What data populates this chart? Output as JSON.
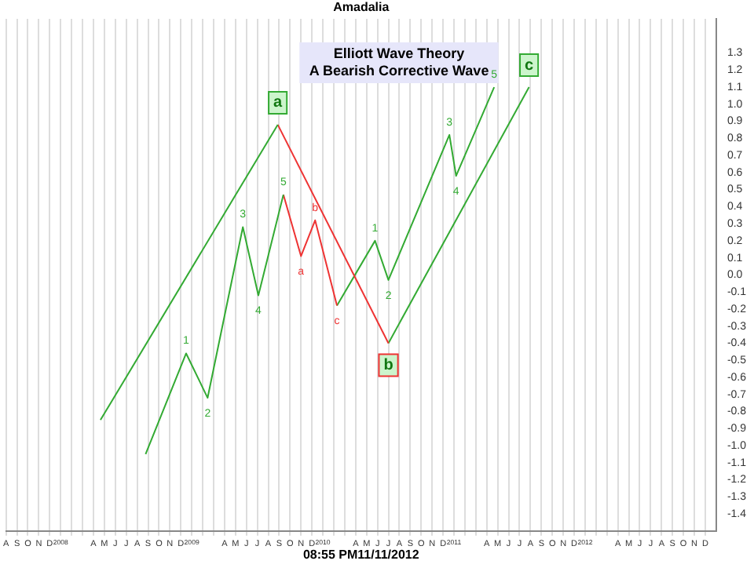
{
  "chart_data": {
    "type": "line",
    "title": "Elliott Wave Theory",
    "subtitle": "A Bearish Corrective Wave",
    "series": [
      {
        "color": "#33aa33",
        "x": [
          "2008-04-21",
          "2009-08-28"
        ],
        "values": [
          -0.85,
          0.88
        ]
      },
      {
        "color": "#ee3333",
        "x": [
          "2009-08-28",
          "2010-07-01"
        ],
        "values": [
          0.88,
          -0.4
        ]
      },
      {
        "color": "#33aa33",
        "x": [
          "2010-07-01",
          "2011-07-28"
        ],
        "values": [
          -0.4,
          1.1
        ]
      },
      {
        "color": "#33aa33",
        "x": [
          "2008-08-25",
          "2008-12-16",
          "2009-02-15",
          "2009-05-22",
          "2009-07-04",
          "2009-09-13"
        ],
        "values": [
          -1.05,
          -0.46,
          -0.72,
          0.28,
          -0.12,
          0.47
        ]
      },
      {
        "color": "#ee3333",
        "x": [
          "2009-09-13",
          "2009-11-01",
          "2009-12-10",
          "2010-02-10"
        ],
        "values": [
          0.47,
          0.11,
          0.32,
          -0.18
        ]
      },
      {
        "color": "#33aa33",
        "x": [
          "2010-02-10",
          "2010-05-25",
          "2010-07-01",
          "2010-12-19",
          "2011-01-07",
          "2011-04-22"
        ],
        "values": [
          -0.18,
          0.2,
          -0.03,
          0.82,
          0.58,
          1.1
        ]
      }
    ],
    "annotations": [
      "Amadalia",
      "08:55 PM11/11/2012",
      {
        "text": "a",
        "x": "2009-08-28",
        "y": 0.88
      },
      {
        "text": "b",
        "x": "2010-07-01",
        "y": -0.4
      },
      {
        "text": "c",
        "x": "2011-07-28",
        "y": 1.1
      },
      {
        "text": "1",
        "x": "2008-12-16",
        "y": -0.46
      },
      {
        "text": "2",
        "x": "2009-02-15",
        "y": -0.72
      },
      {
        "text": "3",
        "x": "2009-05-22",
        "y": 0.28
      },
      {
        "text": "4",
        "x": "2009-07-04",
        "y": -0.12
      },
      {
        "text": "5",
        "x": "2009-09-13",
        "y": 0.47
      },
      {
        "text": "a",
        "x": "2009-11-01",
        "y": 0.11
      },
      {
        "text": "b",
        "x": "2009-12-10",
        "y": 0.32
      },
      {
        "text": "c",
        "x": "2010-02-10",
        "y": -0.18
      },
      {
        "text": "1",
        "x": "2010-05-25",
        "y": 0.2
      },
      {
        "text": "2",
        "x": "2010-07-01",
        "y": -0.03
      },
      {
        "text": "3",
        "x": "2010-12-19",
        "y": 0.82
      },
      {
        "text": "4",
        "x": "2011-01-07",
        "y": 0.58
      },
      {
        "text": "5",
        "x": "2011-04-22",
        "y": 1.1
      }
    ],
    "xlim": [
      "2007-08-01",
      "2013-01-01"
    ],
    "xticks": [
      {
        "value": "2007-08-01",
        "label": "A"
      },
      {
        "value": "2007-09-01",
        "label": "S"
      },
      {
        "value": "2007-10-01",
        "label": "O"
      },
      {
        "value": "2007-11-01",
        "label": "N"
      },
      {
        "value": "2007-12-01",
        "label": "D"
      },
      {
        "value": "2008-01-01",
        "label": "2008"
      },
      {
        "value": "2008-02-01",
        "label": null
      },
      {
        "value": "2008-03-01",
        "label": null
      },
      {
        "value": "2008-04-01",
        "label": "A"
      },
      {
        "value": "2008-05-01",
        "label": "M"
      },
      {
        "value": "2008-06-01",
        "label": "J"
      },
      {
        "value": "2008-07-01",
        "label": "J"
      },
      {
        "value": "2008-08-01",
        "label": "A"
      },
      {
        "value": "2008-09-01",
        "label": "S"
      },
      {
        "value": "2008-10-01",
        "label": "O"
      },
      {
        "value": "2008-11-01",
        "label": "N"
      },
      {
        "value": "2008-12-01",
        "label": "D"
      },
      {
        "value": "2009-01-01",
        "label": "2009"
      },
      {
        "value": "2009-02-01",
        "label": null
      },
      {
        "value": "2009-03-01",
        "label": null
      },
      {
        "value": "2009-04-01",
        "label": "A"
      },
      {
        "value": "2009-05-01",
        "label": "M"
      },
      {
        "value": "2009-06-01",
        "label": "J"
      },
      {
        "value": "2009-07-01",
        "label": "J"
      },
      {
        "value": "2009-08-01",
        "label": "A"
      },
      {
        "value": "2009-09-01",
        "label": "S"
      },
      {
        "value": "2009-10-01",
        "label": "O"
      },
      {
        "value": "2009-11-01",
        "label": "N"
      },
      {
        "value": "2009-12-01",
        "label": "D"
      },
      {
        "value": "2010-01-01",
        "label": "2010"
      },
      {
        "value": "2010-02-01",
        "label": null
      },
      {
        "value": "2010-03-01",
        "label": null
      },
      {
        "value": "2010-04-01",
        "label": "A"
      },
      {
        "value": "2010-05-01",
        "label": "M"
      },
      {
        "value": "2010-06-01",
        "label": "J"
      },
      {
        "value": "2010-07-01",
        "label": "J"
      },
      {
        "value": "2010-08-01",
        "label": "A"
      },
      {
        "value": "2010-09-01",
        "label": "S"
      },
      {
        "value": "2010-10-01",
        "label": "O"
      },
      {
        "value": "2010-11-01",
        "label": "N"
      },
      {
        "value": "2010-12-01",
        "label": "D"
      },
      {
        "value": "2011-01-01",
        "label": "2011"
      },
      {
        "value": "2011-02-01",
        "label": null
      },
      {
        "value": "2011-03-01",
        "label": null
      },
      {
        "value": "2011-04-01",
        "label": "A"
      },
      {
        "value": "2011-05-01",
        "label": "M"
      },
      {
        "value": "2011-06-01",
        "label": "J"
      },
      {
        "value": "2011-07-01",
        "label": "J"
      },
      {
        "value": "2011-08-01",
        "label": "A"
      },
      {
        "value": "2011-09-01",
        "label": "S"
      },
      {
        "value": "2011-10-01",
        "label": "O"
      },
      {
        "value": "2011-11-01",
        "label": "N"
      },
      {
        "value": "2011-12-01",
        "label": "D"
      },
      {
        "value": "2012-01-01",
        "label": "2012"
      },
      {
        "value": "2012-02-01",
        "label": null
      },
      {
        "value": "2012-03-01",
        "label": null
      },
      {
        "value": "2012-04-01",
        "label": "A"
      },
      {
        "value": "2012-05-01",
        "label": "M"
      },
      {
        "value": "2012-06-01",
        "label": "J"
      },
      {
        "value": "2012-07-01",
        "label": "J"
      },
      {
        "value": "2012-08-01",
        "label": "A"
      },
      {
        "value": "2012-09-01",
        "label": "S"
      },
      {
        "value": "2012-10-01",
        "label": "O"
      },
      {
        "value": "2012-11-01",
        "label": "N"
      },
      {
        "value": "2012-12-01",
        "label": "D"
      }
    ],
    "ylim": [
      -1.5,
      1.5
    ],
    "yticks": [
      1.3,
      1.2,
      1.1,
      {
        "value": 1.0,
        "label": "1.0"
      },
      0.9,
      0.8,
      0.7,
      0.6,
      0.5,
      0.4,
      0.3,
      0.2,
      0.1,
      {
        "value": 0,
        "label": "0.0"
      },
      -0.1,
      -0.2,
      -0.3,
      -0.4,
      -0.5,
      -0.6,
      -0.7,
      -0.8,
      -0.9,
      {
        "value": -1.0,
        "label": "-1.0"
      },
      -1.1,
      -1.2,
      -1.3,
      -1.4
    ],
    "grid": "x",
    "legend": false,
    "marker": "none",
    "line_style": "solid"
  }
}
